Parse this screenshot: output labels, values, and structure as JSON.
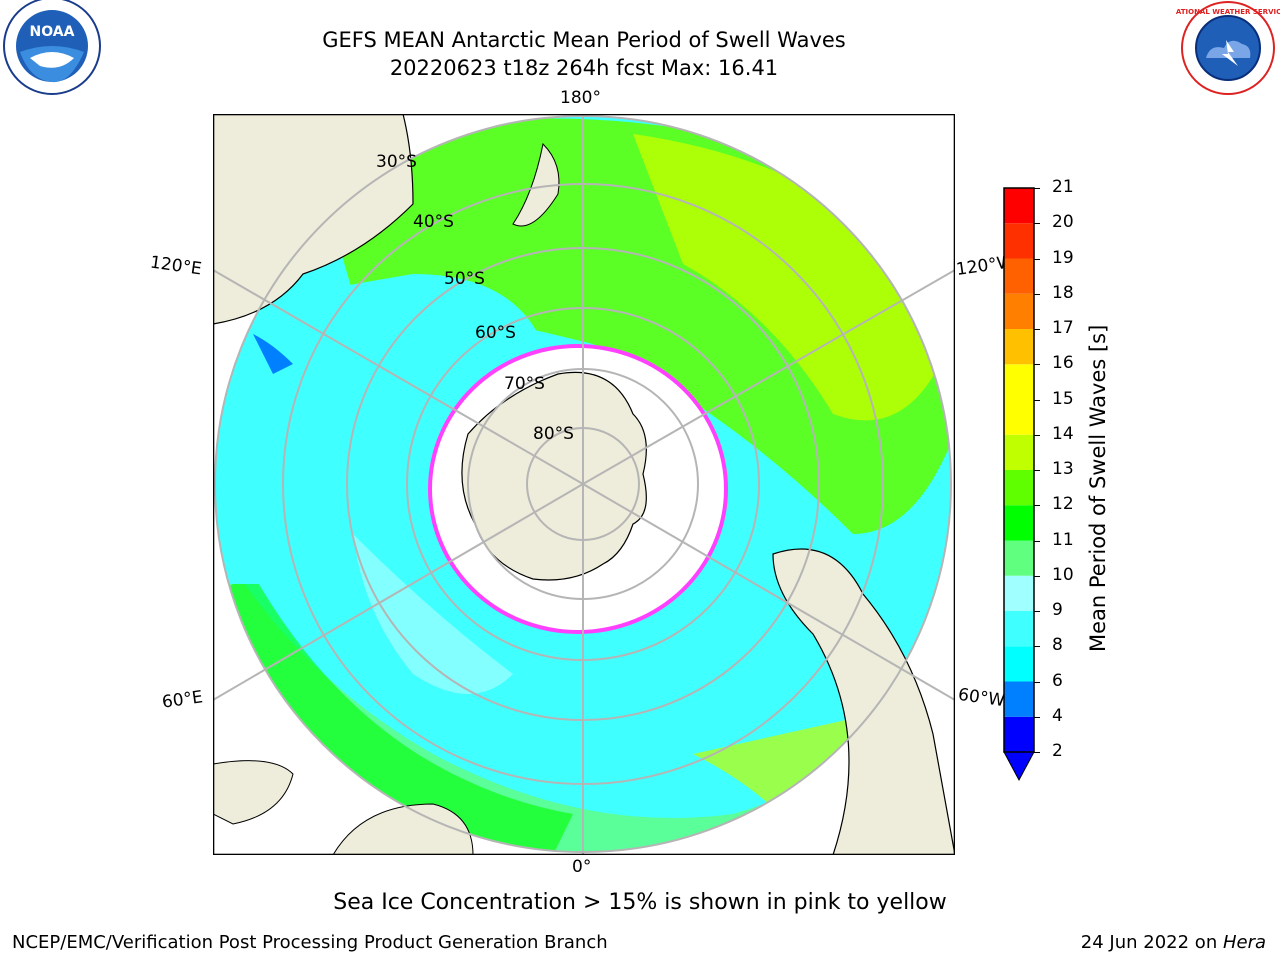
{
  "title_line1": "GEFS MEAN Antarctic Mean Period of Swell Waves",
  "title_line2": "20220623 t18z 264h fcst   Max: 16.41",
  "map": {
    "lon_labels": {
      "top": "180°",
      "bottom": "0°",
      "upper_left": "120°E",
      "upper_right": "120°W",
      "lower_left": "60°E",
      "lower_right": "60°W"
    },
    "lat_labels": [
      "30°S",
      "40°S",
      "50°S",
      "60°S",
      "70°S",
      "80°S"
    ],
    "projection": "south polar stereographic",
    "grid": true
  },
  "colorbar": {
    "title": "Mean Period of Swell Waves [s]",
    "ticks": [
      "2",
      "4",
      "6",
      "8",
      "9",
      "10",
      "11",
      "12",
      "13",
      "14",
      "15",
      "16",
      "17",
      "18",
      "19",
      "20",
      "21"
    ],
    "colors": [
      "#0000ff",
      "#0080ff",
      "#00ffff",
      "#40ffff",
      "#a0ffff",
      "#60ff80",
      "#00ff00",
      "#60ff00",
      "#c0ff00",
      "#ffff00",
      "#ffff00",
      "#ffc000",
      "#ff8000",
      "#ff6000",
      "#ff3000",
      "#ff0000"
    ],
    "extend_color": "#0000ff"
  },
  "caption": "Sea Ice Concentration > 15% is shown in pink to yellow",
  "footer_left": "NCEP/EMC/Verification Post Processing Product Generation Branch",
  "footer_date": "24 Jun 2022 on ",
  "footer_machine": "Hera",
  "logos": {
    "left": "NOAA",
    "right_text": "NATIONAL WEATHER SERVICE"
  }
}
